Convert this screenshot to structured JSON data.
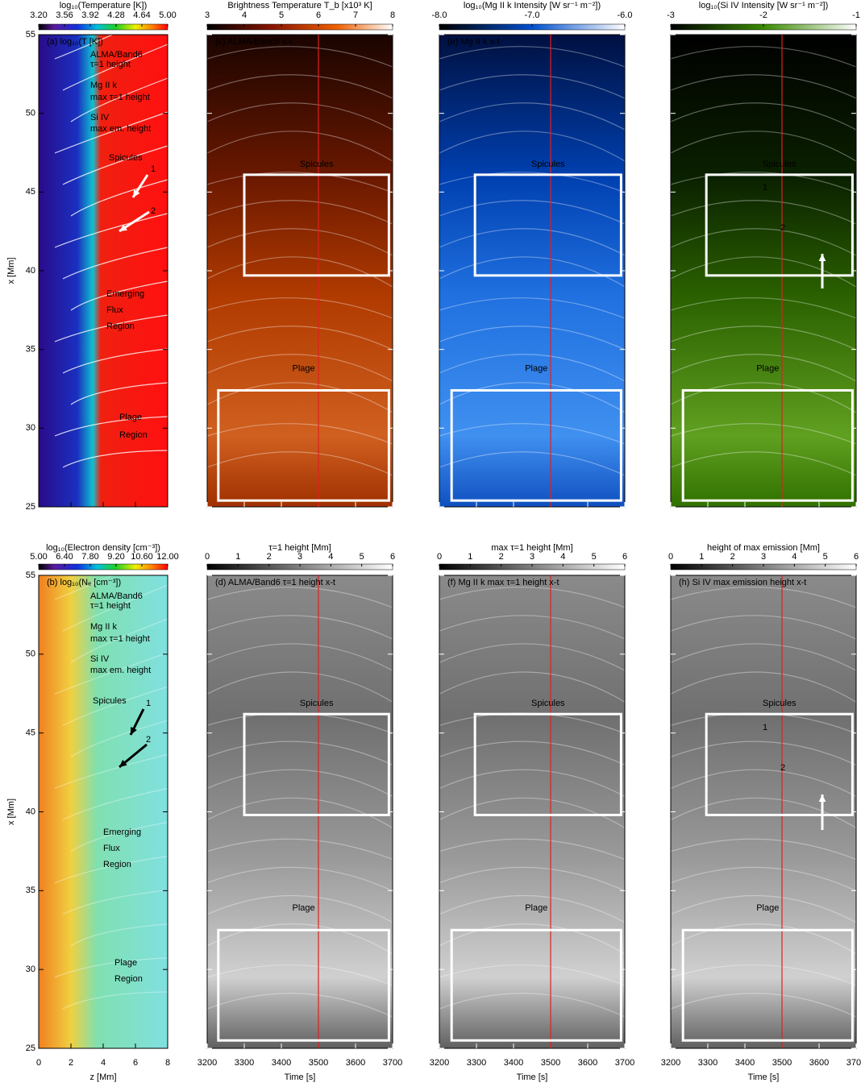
{
  "chart_data": [
    {
      "type": "heatmap",
      "title": "(a) log₁₀(T [K])",
      "ylabel": "x [Mm]",
      "colorbar": {
        "label": "log₁₀(Temperature [K])",
        "lim": [
          3.2,
          5.0
        ],
        "ticks": [
          {
            "value": 3.2,
            "label": "3.20"
          },
          {
            "value": 3.56,
            "label": "3.56"
          },
          {
            "value": 3.92,
            "label": "3.92"
          },
          {
            "value": 4.28,
            "label": "4.28"
          },
          {
            "value": 4.64,
            "label": "4.64"
          },
          {
            "value": 5.0,
            "label": "5.00"
          }
        ]
      },
      "xlim": [
        0,
        8
      ],
      "xticks": [
        0,
        2,
        4,
        6,
        8
      ],
      "ylim": [
        25,
        55
      ],
      "yticks": [
        25,
        30,
        35,
        40,
        45,
        50,
        55
      ],
      "annotations": [
        "ALMA/Band6",
        "τ=1 height",
        "Mg II k",
        "max τ=1 height",
        "Si IV",
        "max em. height",
        "Spicules",
        "1",
        "2",
        "Emerging",
        "Flux",
        "Region",
        "Plage",
        "Region"
      ]
    },
    {
      "type": "heatmap",
      "title": "(c) ALMA/Band6 x-t",
      "colorbar": {
        "label": "Brightness Temperature T_b [x10³ K]",
        "lim": [
          3,
          8
        ],
        "ticks": [
          3,
          4,
          5,
          6,
          7,
          8
        ]
      },
      "xlim": [
        3200,
        3700
      ],
      "xticks": [
        3200,
        3300,
        3400,
        3500,
        3600,
        3700
      ],
      "ylim": [
        25,
        55
      ],
      "yticks": [
        25,
        30,
        35,
        40,
        45,
        50,
        55
      ],
      "vline": 3500,
      "boxes": [
        {
          "name": "Spicules",
          "xlim": [
            3300,
            3690
          ],
          "ylim": [
            39.7,
            46.1
          ]
        },
        {
          "name": "Plage",
          "xlim": [
            3230,
            3690
          ],
          "ylim": [
            25.4,
            32.4
          ]
        }
      ]
    },
    {
      "type": "heatmap",
      "title": "(e) Mg II k x-t",
      "colorbar": {
        "label": "log₁₀(Mg II k Intensity [W sr⁻¹ m⁻²])",
        "lim": [
          -8,
          -6
        ],
        "ticks": [
          {
            "value": -8,
            "label": "-8.0"
          },
          {
            "value": -7,
            "label": "-7.0"
          },
          {
            "value": -6,
            "label": "-6.0"
          }
        ]
      },
      "xlim": [
        3200,
        3700
      ],
      "xticks": [
        3200,
        3300,
        3400,
        3500,
        3600,
        3700
      ],
      "ylim": [
        25,
        55
      ],
      "yticks": [
        25,
        30,
        35,
        40,
        45,
        50,
        55
      ],
      "vline": 3500,
      "boxes": [
        {
          "name": "Spicules",
          "xlim": [
            3296,
            3690
          ],
          "ylim": [
            39.7,
            46.1
          ]
        },
        {
          "name": "Plage",
          "xlim": [
            3233,
            3690
          ],
          "ylim": [
            25.4,
            32.4
          ]
        }
      ]
    },
    {
      "type": "heatmap",
      "title": "(g) Si IV x-t",
      "colorbar": {
        "label": "log₁₀(Si IV Intensity [W sr⁻¹ m⁻²])",
        "lim": [
          -3,
          -1
        ],
        "ticks": [
          -3,
          -2,
          -1
        ]
      },
      "xlim": [
        3200,
        3700
      ],
      "xticks": [
        3200,
        3300,
        3400,
        3500,
        3600,
        3700
      ],
      "ylim": [
        25,
        55
      ],
      "yticks": [
        25,
        30,
        35,
        40,
        45,
        50,
        55
      ],
      "vline": 3500,
      "boxes": [
        {
          "name": "Spicules",
          "xlim": [
            3296,
            3690
          ],
          "ylim": [
            39.7,
            46.1
          ]
        },
        {
          "name": "Plage",
          "xlim": [
            3233,
            3690
          ],
          "ylim": [
            25.4,
            32.4
          ]
        }
      ],
      "annotations": [
        "1",
        "2"
      ]
    },
    {
      "type": "heatmap",
      "title": "(b) log₁₀(Nₑ [cm⁻³])",
      "ylabel": "x [Mm]",
      "xlabel": "z [Mm]",
      "colorbar": {
        "label": "log₁₀(Electron density [cm⁻³])",
        "lim": [
          5,
          12
        ],
        "ticks": [
          {
            "value": 5,
            "label": "5.00"
          },
          {
            "value": 6.4,
            "label": "6.40"
          },
          {
            "value": 7.8,
            "label": "7.80"
          },
          {
            "value": 9.2,
            "label": "9.20"
          },
          {
            "value": 10.6,
            "label": "10.60"
          },
          {
            "value": 12,
            "label": "12.00"
          }
        ]
      },
      "xlim": [
        0,
        8
      ],
      "xticks": [
        0,
        2,
        4,
        6,
        8
      ],
      "ylim": [
        25,
        55
      ],
      "yticks": [
        25,
        30,
        35,
        40,
        45,
        50,
        55
      ],
      "annotations": [
        "ALMA/Band6",
        "τ=1 height",
        "Mg II k",
        "max τ=1 height",
        "Si IV",
        "max em. height",
        "Spicules",
        "1",
        "2",
        "Emerging",
        "Flux",
        "Region",
        "Plage",
        "Region"
      ]
    },
    {
      "type": "heatmap",
      "title": "(d) ALMA/Band6 τ=1 height x-t",
      "xlabel": "Time [s]",
      "colorbar": {
        "label": "τ=1 height [Mm]",
        "lim": [
          0,
          6
        ],
        "ticks": [
          0,
          1,
          2,
          3,
          4,
          5,
          6
        ]
      },
      "xlim": [
        3200,
        3700
      ],
      "xticks": [
        3200,
        3300,
        3400,
        3500,
        3600,
        3700
      ],
      "ylim": [
        25,
        55
      ],
      "yticks": [
        25,
        30,
        35,
        40,
        45,
        50,
        55
      ],
      "vline": 3500,
      "boxes": [
        {
          "name": "Spicules",
          "xlim": [
            3300,
            3690
          ],
          "ylim": [
            39.8,
            46.2
          ]
        },
        {
          "name": "Plage",
          "xlim": [
            3230,
            3690
          ],
          "ylim": [
            25.5,
            32.5
          ]
        }
      ]
    },
    {
      "type": "heatmap",
      "title": "(f) Mg II k max τ=1 height x-t",
      "xlabel": "Time [s]",
      "colorbar": {
        "label": "max τ=1 height [Mm]",
        "lim": [
          0,
          6
        ],
        "ticks": [
          0,
          1,
          2,
          3,
          4,
          5,
          6
        ]
      },
      "xlim": [
        3200,
        3700
      ],
      "xticks": [
        3200,
        3300,
        3400,
        3500,
        3600,
        3700
      ],
      "ylim": [
        25,
        55
      ],
      "yticks": [
        25,
        30,
        35,
        40,
        45,
        50,
        55
      ],
      "vline": 3500,
      "boxes": [
        {
          "name": "Spicules",
          "xlim": [
            3296,
            3690
          ],
          "ylim": [
            39.8,
            46.2
          ]
        },
        {
          "name": "Plage",
          "xlim": [
            3233,
            3690
          ],
          "ylim": [
            25.5,
            32.5
          ]
        }
      ]
    },
    {
      "type": "heatmap",
      "title": "(h) Si IV max emission height x-t",
      "xlabel": "Time [s]",
      "colorbar": {
        "label": "height of max emission [Mm]",
        "lim": [
          0,
          6
        ],
        "ticks": [
          0,
          1,
          2,
          3,
          4,
          5,
          6
        ]
      },
      "xlim": [
        3200,
        3700
      ],
      "xticks": [
        3200,
        3300,
        3400,
        3500,
        3600,
        3700
      ],
      "ylim": [
        25,
        55
      ],
      "yticks": [
        25,
        30,
        35,
        40,
        45,
        50,
        55
      ],
      "vline": 3500,
      "boxes": [
        {
          "name": "Spicules",
          "xlim": [
            3296,
            3690
          ],
          "ylim": [
            39.8,
            46.2
          ]
        },
        {
          "name": "Plage",
          "xlim": [
            3233,
            3690
          ],
          "ylim": [
            25.5,
            32.5
          ]
        }
      ],
      "annotations": [
        "1",
        "2"
      ]
    }
  ]
}
